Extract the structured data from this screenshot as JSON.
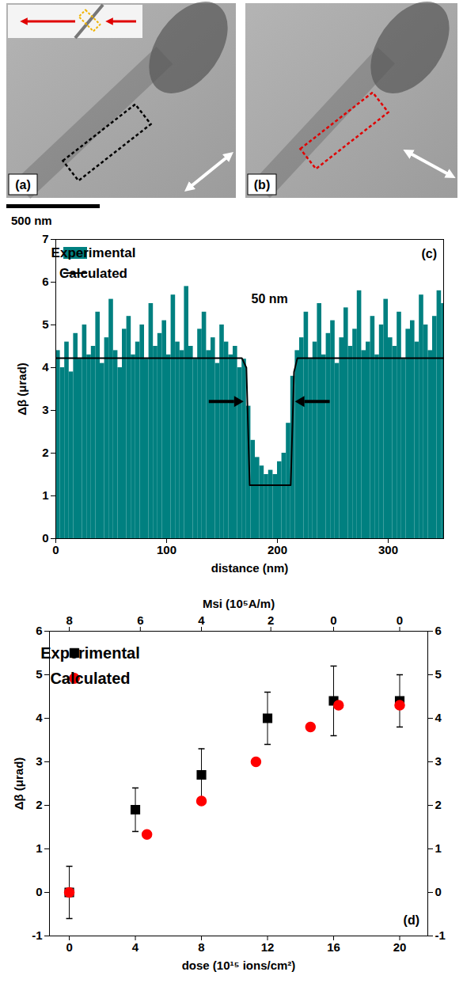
{
  "images": {
    "panels": [
      "(a)",
      "(b)"
    ],
    "scale_bar": "500 nm"
  },
  "chart_data": [
    {
      "panel": "(c)",
      "type": "histogram",
      "x_label": "distance (nm)",
      "y_label": "Δβ (μrad)",
      "xlim": [
        0,
        350
      ],
      "xticks": [
        0,
        100,
        200,
        300
      ],
      "ylim": [
        0,
        7
      ],
      "yticks": [
        0,
        1,
        2,
        3,
        4,
        5,
        6,
        7
      ],
      "legend": "top-left",
      "annotations": [
        {
          "text": "50 nm",
          "x": 193,
          "y": 5.6,
          "span": [
            172,
            214
          ],
          "span_y": 3.2
        }
      ],
      "series": [
        {
          "name": "Experimental",
          "type": "histogram",
          "color": "#008080",
          "bins": [
            0,
            4,
            8,
            12,
            16,
            20,
            24,
            28,
            32,
            36,
            40,
            44,
            48,
            52,
            56,
            60,
            64,
            68,
            72,
            76,
            80,
            84,
            88,
            92,
            96,
            100,
            104,
            108,
            112,
            116,
            120,
            124,
            128,
            132,
            136,
            140,
            144,
            148,
            152,
            156,
            160,
            164,
            168,
            172,
            176,
            180,
            184,
            188,
            192,
            196,
            200,
            204,
            208,
            212,
            216,
            220,
            224,
            228,
            232,
            236,
            240,
            244,
            248,
            252,
            256,
            260,
            264,
            268,
            272,
            276,
            280,
            284,
            288,
            292,
            296,
            300,
            304,
            308,
            312,
            316,
            320,
            324,
            328,
            332,
            336,
            340,
            344,
            348,
            352
          ],
          "values": [
            4.4,
            4.0,
            4.6,
            3.9,
            4.8,
            4.2,
            5.0,
            4.3,
            4.5,
            5.3,
            4.1,
            4.7,
            5.6,
            4.4,
            4.0,
            4.9,
            5.2,
            4.3,
            4.6,
            5.0,
            4.2,
            5.5,
            4.5,
            4.8,
            5.1,
            4.3,
            5.7,
            4.6,
            4.4,
            5.9,
            4.5,
            4.2,
            4.9,
            5.3,
            4.4,
            4.7,
            4.1,
            5.0,
            4.6,
            4.3,
            4.5,
            4.0,
            4.2,
            3.1,
            2.3,
            1.9,
            1.7,
            1.5,
            1.6,
            1.5,
            1.8,
            2.0,
            2.7,
            3.8,
            4.4,
            4.7,
            5.3,
            4.2,
            4.6,
            5.5,
            4.3,
            4.8,
            5.1,
            4.1,
            4.7,
            5.4,
            4.5,
            4.9,
            5.8,
            4.4,
            4.6,
            5.2,
            4.3,
            5.0,
            5.6,
            4.7,
            4.5,
            5.3,
            4.2,
            4.9,
            5.1,
            4.6,
            5.7,
            5.0,
            4.4,
            5.2,
            5.8,
            5.5
          ]
        },
        {
          "name": "Calculated",
          "type": "line",
          "color": "#000000",
          "x": [
            0,
            168,
            172,
            175,
            212,
            215,
            218,
            350
          ],
          "values": [
            4.22,
            4.22,
            4.0,
            1.25,
            1.25,
            3.9,
            4.22,
            4.22
          ]
        }
      ]
    },
    {
      "panel": "(d)",
      "type": "scatter",
      "x_label": "dose (10¹⁵ ions/cm²)",
      "y_label": "Δβ (μrad)",
      "x2_label": "Msi (10⁵A/m)",
      "xlim": [
        -1.2,
        21.7
      ],
      "xticks": [
        0,
        4,
        8,
        12,
        16,
        20
      ],
      "x2ticks": [
        {
          "value": 0,
          "label": "8"
        },
        {
          "value": 4.3,
          "label": "6"
        },
        {
          "value": 8,
          "label": "4"
        },
        {
          "value": 12.2,
          "label": "2"
        },
        {
          "value": 16,
          "label": "0"
        },
        {
          "value": 20,
          "label": "0"
        }
      ],
      "ylim": [
        -1,
        6
      ],
      "yticks": [
        -1,
        0,
        1,
        2,
        3,
        4,
        5,
        6
      ],
      "y2ticks": [
        -1,
        0,
        1,
        2,
        3,
        4,
        5,
        6
      ],
      "legend": "top-left",
      "series": [
        {
          "name": "Experimental",
          "color": "#000000",
          "marker": "square",
          "x": [
            0,
            4,
            8,
            12,
            16,
            20
          ],
          "values": [
            0,
            1.9,
            2.7,
            4.0,
            4.4,
            4.4
          ],
          "errors": [
            0.6,
            0.5,
            0.6,
            0.6,
            0.8,
            0.6
          ]
        },
        {
          "name": "Calculated",
          "color": "#ff0000",
          "marker": "circle",
          "x": [
            0,
            4.7,
            8,
            11.3,
            14.6,
            16.3,
            20
          ],
          "values": [
            0,
            1.33,
            2.1,
            3.0,
            3.8,
            4.3,
            4.3
          ]
        }
      ]
    }
  ]
}
